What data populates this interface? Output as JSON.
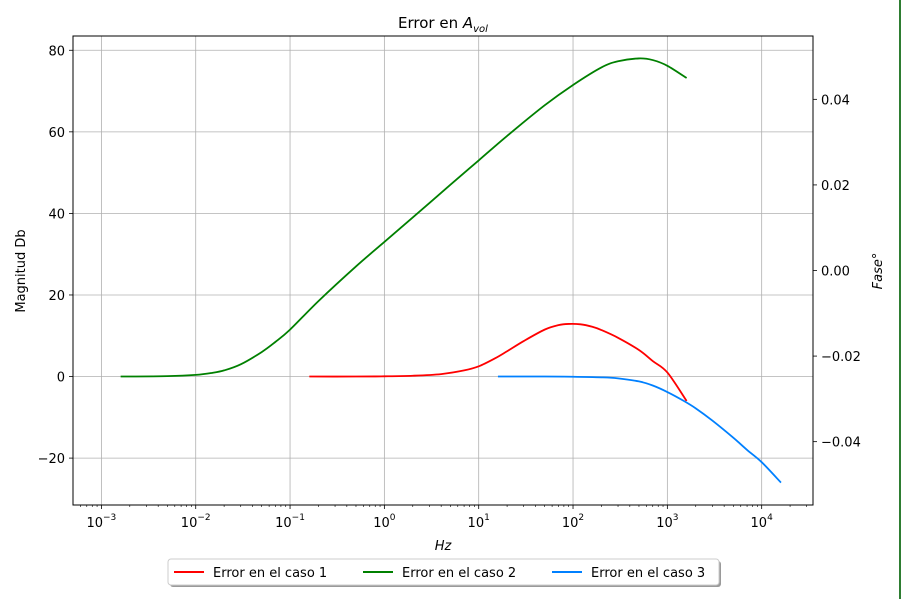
{
  "chart_data": {
    "type": "line",
    "title_prefix": "Error en ",
    "title_math_base": "A",
    "title_math_sub": "vol",
    "xlabel": "Hz",
    "ylabel": "Magnitud Db",
    "y2label": "Fase°",
    "xscale": "log",
    "xlim": [
      0.0005,
      35000
    ],
    "ylim": [
      -31.5,
      83.5
    ],
    "y2lim": [
      -0.0548,
      0.0548
    ],
    "grid": true,
    "legend_placement": "bottom-center",
    "x_ticks": [
      {
        "base": "10",
        "exp": "−3",
        "value": 0.001
      },
      {
        "base": "10",
        "exp": "−2",
        "value": 0.01
      },
      {
        "base": "10",
        "exp": "−1",
        "value": 0.1
      },
      {
        "base": "10",
        "exp": "0",
        "value": 1
      },
      {
        "base": "10",
        "exp": "1",
        "value": 10
      },
      {
        "base": "10",
        "exp": "2",
        "value": 100
      },
      {
        "base": "10",
        "exp": "3",
        "value": 1000
      },
      {
        "base": "10",
        "exp": "4",
        "value": 10000
      }
    ],
    "y_ticks": [
      {
        "label": "−20",
        "value": -20
      },
      {
        "label": "0",
        "value": 0
      },
      {
        "label": "20",
        "value": 20
      },
      {
        "label": "40",
        "value": 40
      },
      {
        "label": "60",
        "value": 60
      },
      {
        "label": "80",
        "value": 80
      }
    ],
    "y2_ticks": [
      {
        "label": "−0.04",
        "value": -0.04
      },
      {
        "label": "−0.02",
        "value": -0.02
      },
      {
        "label": "0.00",
        "value": 0
      },
      {
        "label": "0.02",
        "value": 0.02
      },
      {
        "label": "0.04",
        "value": 0.04
      }
    ],
    "series": [
      {
        "name": "Error en el caso 1",
        "color": "#ff0000",
        "x": [
          0.16,
          0.5,
          1,
          2,
          4,
          7,
          10,
          15,
          20,
          30,
          50,
          70,
          90,
          120,
          160,
          200,
          300,
          500,
          700,
          1000,
          1600
        ],
        "y": [
          0,
          0,
          0.05,
          0.2,
          0.6,
          1.5,
          2.5,
          4.5,
          6.2,
          8.7,
          11.5,
          12.6,
          12.9,
          12.8,
          12.2,
          11.4,
          9.5,
          6.5,
          3.8,
          1.0,
          -6.0
        ]
      },
      {
        "name": "Error en el caso 2",
        "color": "#008000",
        "x": [
          0.0016,
          0.005,
          0.01,
          0.015,
          0.02,
          0.03,
          0.05,
          0.07,
          0.1,
          0.2,
          0.5,
          1,
          2,
          5,
          10,
          20,
          50,
          100,
          200,
          300,
          500,
          700,
          1000,
          1600
        ],
        "y": [
          0,
          0.1,
          0.4,
          0.9,
          1.5,
          3.0,
          6.0,
          8.5,
          11.5,
          18.5,
          27.0,
          33.0,
          39.0,
          47.0,
          53.0,
          59.0,
          66.5,
          71.5,
          75.8,
          77.3,
          78.0,
          77.6,
          76.2,
          73.2
        ]
      },
      {
        "name": "Error en el caso 3",
        "color": "#0080ff",
        "x": [
          16,
          50,
          100,
          200,
          300,
          500,
          700,
          1000,
          1500,
          2000,
          3000,
          5000,
          7000,
          10000,
          16000
        ],
        "y": [
          0,
          0,
          -0.05,
          -0.2,
          -0.45,
          -1.2,
          -2.2,
          -3.8,
          -6.0,
          -7.8,
          -10.8,
          -15.0,
          -18.0,
          -21.0,
          -26.0
        ]
      }
    ]
  }
}
